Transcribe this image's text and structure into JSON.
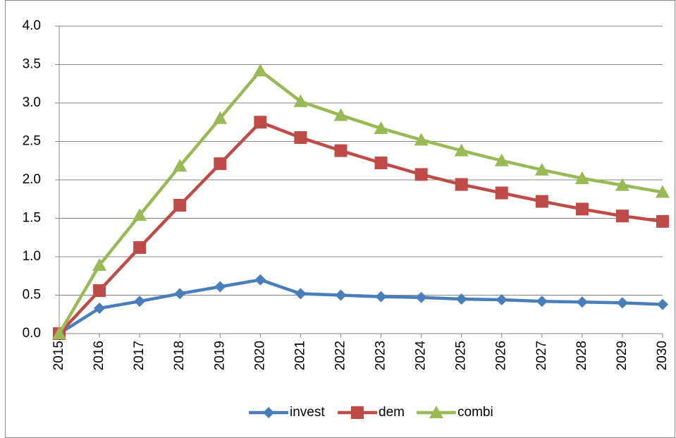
{
  "chart_data": {
    "type": "line",
    "categories": [
      "2015",
      "2016",
      "2017",
      "2018",
      "2019",
      "2020",
      "2021",
      "2022",
      "2023",
      "2024",
      "2025",
      "2026",
      "2027",
      "2028",
      "2029",
      "2030"
    ],
    "series": [
      {
        "name": "invest",
        "color": "#4a7ebb",
        "marker": "diamond",
        "values": [
          0,
          0.33,
          0.42,
          0.52,
          0.61,
          0.7,
          0.52,
          0.5,
          0.48,
          0.47,
          0.45,
          0.44,
          0.42,
          0.41,
          0.4,
          0.38
        ]
      },
      {
        "name": "dem",
        "color": "#be4b48",
        "marker": "square",
        "values": [
          0,
          0.56,
          1.12,
          1.67,
          2.21,
          2.75,
          2.55,
          2.38,
          2.22,
          2.07,
          1.94,
          1.83,
          1.72,
          1.62,
          1.53,
          1.46
        ]
      },
      {
        "name": "combi",
        "color": "#98b954",
        "marker": "triangle",
        "values": [
          0,
          0.89,
          1.54,
          2.18,
          2.8,
          3.42,
          3.02,
          2.84,
          2.67,
          2.52,
          2.38,
          2.25,
          2.13,
          2.02,
          1.93,
          1.84
        ]
      }
    ],
    "ylim": [
      0,
      4
    ],
    "yticks": [
      {
        "value": 0,
        "label": "0.0"
      },
      0.5,
      {
        "value": 1,
        "label": "1.0"
      },
      1.5,
      {
        "value": 2,
        "label": "2.0"
      },
      2.5,
      {
        "value": 3,
        "label": "3.0"
      },
      3.5,
      {
        "value": 4,
        "label": "4.0"
      }
    ],
    "grid": true,
    "legend": "bottom"
  }
}
